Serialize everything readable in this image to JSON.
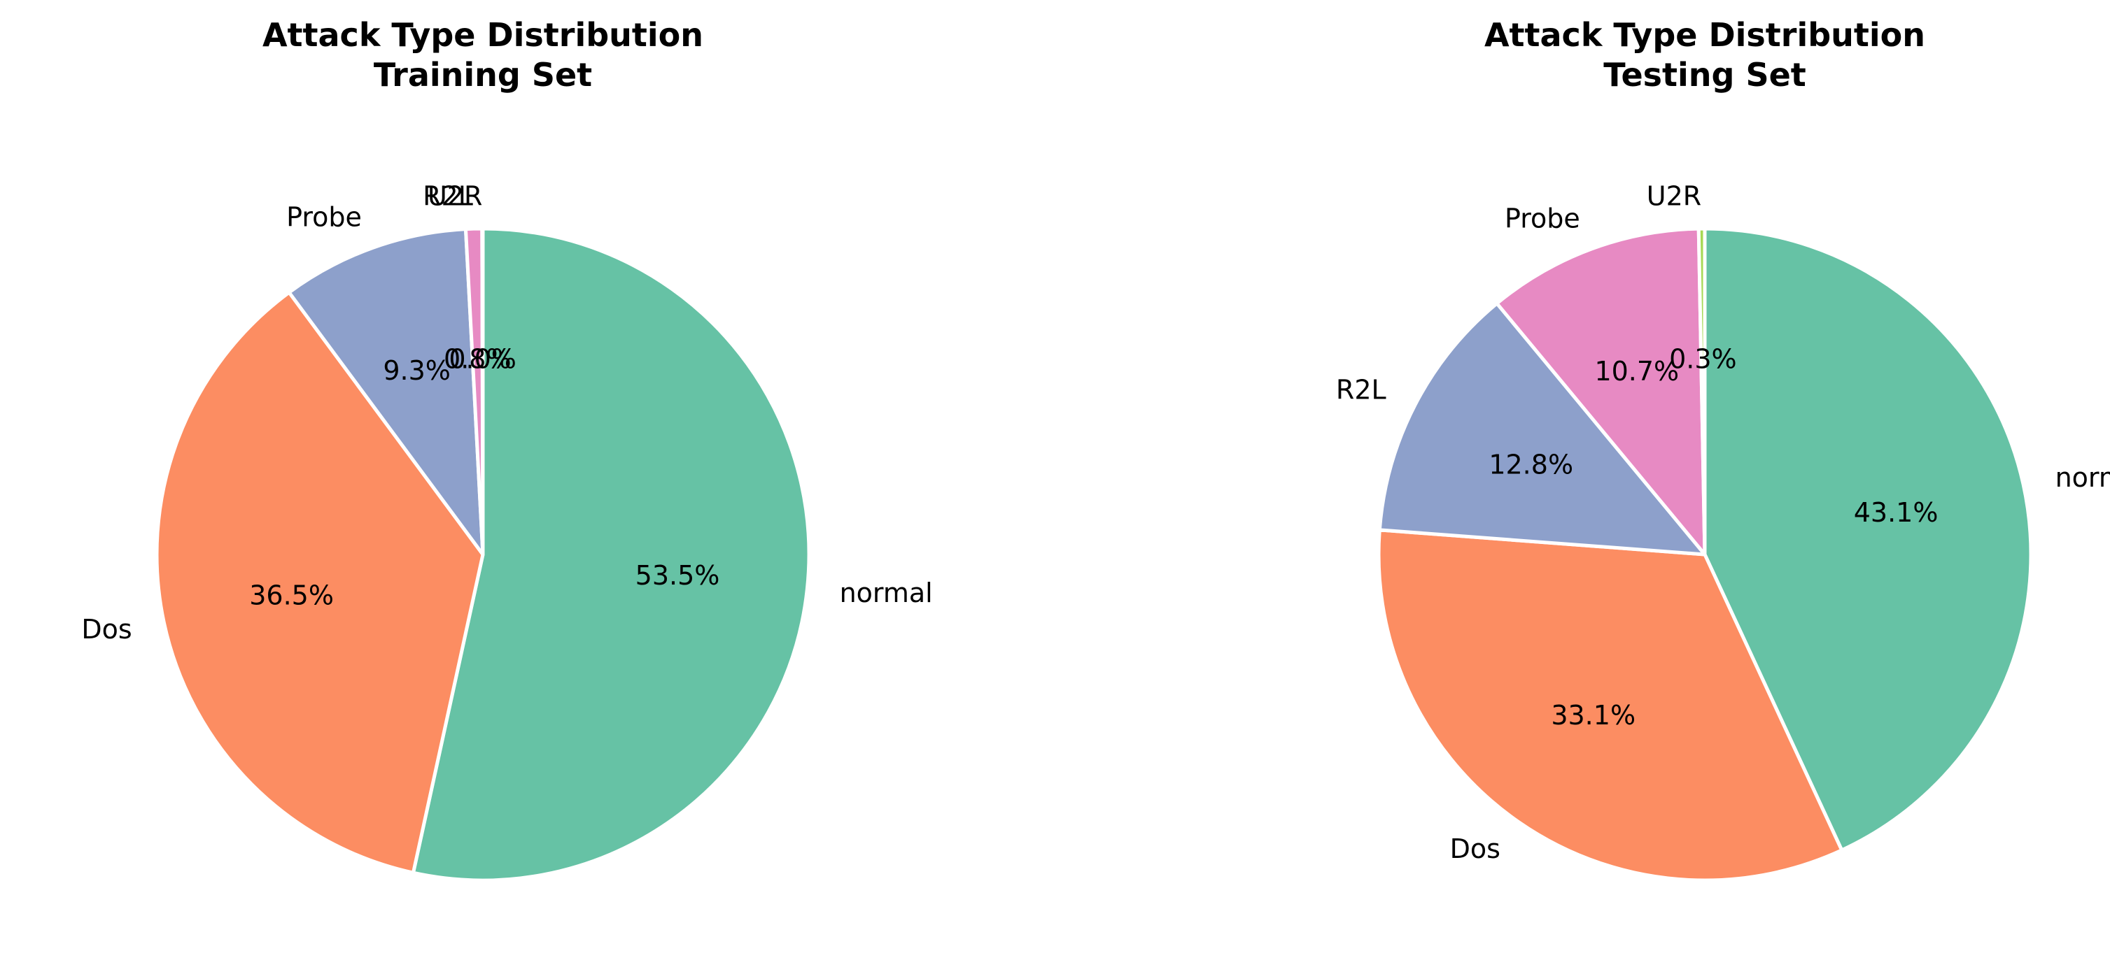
{
  "chart_data": [
    {
      "type": "pie",
      "title_line1": "Attack Type Distribution",
      "title_line2": "Training Set",
      "start_angle_deg": 90,
      "direction": "clockwise",
      "slices": [
        {
          "label": "normal",
          "value": 53.5,
          "pct_text": "53.5%",
          "color": "#66c2a5"
        },
        {
          "label": "Dos",
          "value": 36.5,
          "pct_text": "36.5%",
          "color": "#fc8d62"
        },
        {
          "label": "Probe",
          "value": 9.3,
          "pct_text": "9.3%",
          "color": "#8da0cb"
        },
        {
          "label": "R2L",
          "value": 0.8,
          "pct_text": "0.8%",
          "color": "#e78ac3"
        },
        {
          "label": "U2R",
          "value": 0.04,
          "pct_text": "0.0%",
          "color": "#a6d854"
        }
      ]
    },
    {
      "type": "pie",
      "title_line1": "Attack Type Distribution",
      "title_line2": "Testing Set",
      "start_angle_deg": 90,
      "direction": "clockwise",
      "slices": [
        {
          "label": "normal",
          "value": 43.1,
          "pct_text": "43.1%",
          "color": "#66c2a5"
        },
        {
          "label": "Dos",
          "value": 33.1,
          "pct_text": "33.1%",
          "color": "#fc8d62"
        },
        {
          "label": "R2L",
          "value": 12.8,
          "pct_text": "12.8%",
          "color": "#8da0cb"
        },
        {
          "label": "Probe",
          "value": 10.7,
          "pct_text": "10.7%",
          "color": "#e78ac3"
        },
        {
          "label": "U2R",
          "value": 0.3,
          "pct_text": "0.3%",
          "color": "#a6d854"
        }
      ]
    }
  ]
}
